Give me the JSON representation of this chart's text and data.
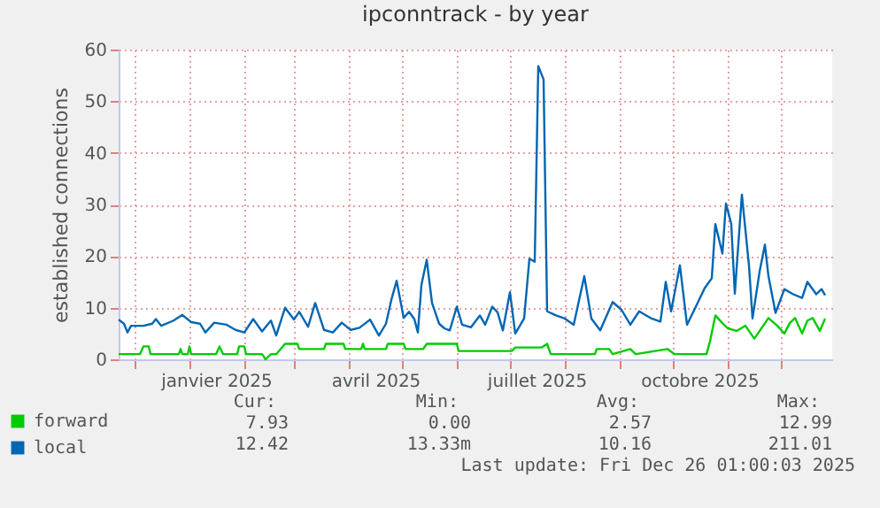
{
  "chart_data": {
    "type": "line",
    "title": "ipconntrack - by year",
    "ylabel": "established connections",
    "xlim": [
      "2024-11-22",
      "2025-12-30"
    ],
    "xticks": [
      {
        "value": "2024-12-01",
        "label": null
      },
      {
        "value": "2025-01-01",
        "label": null
      },
      {
        "value": "2025-01-16",
        "label": "janvier 2025"
      },
      {
        "value": "2025-02-01",
        "label": null
      },
      {
        "value": "2025-03-01",
        "label": null
      },
      {
        "value": "2025-04-01",
        "label": null
      },
      {
        "value": "2025-04-16",
        "label": "avril 2025"
      },
      {
        "value": "2025-05-01",
        "label": null
      },
      {
        "value": "2025-06-01",
        "label": null
      },
      {
        "value": "2025-07-01",
        "label": null
      },
      {
        "value": "2025-07-16",
        "label": "juillet 2025"
      },
      {
        "value": "2025-08-01",
        "label": null
      },
      {
        "value": "2025-09-01",
        "label": null
      },
      {
        "value": "2025-10-01",
        "label": null
      },
      {
        "value": "2025-10-16",
        "label": "octobre 2025"
      },
      {
        "value": "2025-11-01",
        "label": null
      },
      {
        "value": "2025-12-01",
        "label": null
      }
    ],
    "ylim": [
      0,
      60
    ],
    "yticks": [
      0,
      10,
      20,
      30,
      40,
      50,
      60
    ],
    "grid": true,
    "legend": "bottom left",
    "series": [
      {
        "name": "forward",
        "color": "#00cc00",
        "x": [
          "2024-11-22",
          "2024-12-04",
          "2024-12-06",
          "2024-12-09",
          "2024-12-10",
          "2024-12-26",
          "2024-12-27",
          "2024-12-28",
          "2024-12-31",
          "2025-01-01",
          "2025-01-02",
          "2025-01-16",
          "2025-01-18",
          "2025-01-20",
          "2025-01-28",
          "2025-01-29",
          "2025-02-01",
          "2025-02-02",
          "2025-02-11",
          "2025-02-13",
          "2025-02-16",
          "2025-02-19",
          "2025-02-24",
          "2025-03-03",
          "2025-03-04",
          "2025-03-18",
          "2025-03-19",
          "2025-03-29",
          "2025-03-30",
          "2025-04-08",
          "2025-04-09",
          "2025-04-10",
          "2025-04-22",
          "2025-04-23",
          "2025-05-02",
          "2025-05-03",
          "2025-05-13",
          "2025-05-15",
          "2025-06-01",
          "2025-06-02",
          "2025-07-02",
          "2025-07-04",
          "2025-07-19",
          "2025-07-22",
          "2025-07-24",
          "2025-08-18",
          "2025-08-19",
          "2025-08-26",
          "2025-08-28",
          "2025-09-07",
          "2025-09-10",
          "2025-09-28",
          "2025-10-02",
          "2025-10-20",
          "2025-10-22",
          "2025-10-25",
          "2025-10-29",
          "2025-11-01",
          "2025-11-06",
          "2025-11-11",
          "2025-11-16",
          "2025-11-21",
          "2025-11-24",
          "2025-11-29",
          "2025-12-03",
          "2025-12-06",
          "2025-12-09",
          "2025-12-13",
          "2025-12-16",
          "2025-12-19",
          "2025-12-23",
          "2025-12-26"
        ],
        "values": [
          1,
          1,
          2.5,
          2.5,
          1,
          1,
          2,
          1,
          1,
          2.5,
          1,
          1,
          2.5,
          1,
          1,
          2.5,
          2.5,
          1,
          1,
          0,
          1,
          1,
          3,
          3,
          2,
          2,
          3,
          3,
          2,
          2,
          3,
          2,
          2,
          3,
          3,
          2,
          2,
          3,
          3,
          1.6,
          1.6,
          2.3,
          2.3,
          3,
          1,
          1,
          2,
          2,
          1,
          2,
          1,
          2,
          1,
          1,
          3.5,
          8.5,
          7,
          6,
          5.5,
          6.5,
          4,
          6.5,
          8,
          6.5,
          5,
          7,
          8,
          5,
          7.5,
          8,
          5.5,
          7.9
        ]
      },
      {
        "name": "local",
        "color": "#0066b3",
        "x": [
          "2024-11-22",
          "2024-11-25",
          "2024-11-27",
          "2024-11-29",
          "2024-12-06",
          "2024-12-11",
          "2024-12-13",
          "2024-12-16",
          "2024-12-23",
          "2024-12-28",
          "2025-01-02",
          "2025-01-07",
          "2025-01-10",
          "2025-01-15",
          "2025-01-22",
          "2025-01-27",
          "2025-02-01",
          "2025-02-06",
          "2025-02-11",
          "2025-02-16",
          "2025-02-19",
          "2025-02-24",
          "2025-03-01",
          "2025-03-04",
          "2025-03-09",
          "2025-03-13",
          "2025-03-18",
          "2025-03-23",
          "2025-03-28",
          "2025-04-02",
          "2025-04-07",
          "2025-04-13",
          "2025-04-18",
          "2025-04-22",
          "2025-04-25",
          "2025-04-28",
          "2025-05-02",
          "2025-05-05",
          "2025-05-08",
          "2025-05-10",
          "2025-05-12",
          "2025-05-15",
          "2025-05-18",
          "2025-05-22",
          "2025-05-25",
          "2025-05-28",
          "2025-06-01",
          "2025-06-04",
          "2025-06-09",
          "2025-06-14",
          "2025-06-17",
          "2025-06-21",
          "2025-06-24",
          "2025-06-27",
          "2025-07-01",
          "2025-07-04",
          "2025-07-09",
          "2025-07-12",
          "2025-07-15",
          "2025-07-17",
          "2025-07-20",
          "2025-07-22",
          "2025-07-27",
          "2025-08-01",
          "2025-08-06",
          "2025-08-12",
          "2025-08-16",
          "2025-08-21",
          "2025-08-28",
          "2025-09-02",
          "2025-09-07",
          "2025-09-12",
          "2025-09-19",
          "2025-09-24",
          "2025-09-27",
          "2025-09-30",
          "2025-10-05",
          "2025-10-09",
          "2025-10-14",
          "2025-10-19",
          "2025-10-23",
          "2025-10-25",
          "2025-10-29",
          "2025-10-31",
          "2025-11-03",
          "2025-11-05",
          "2025-11-09",
          "2025-11-13",
          "2025-11-15",
          "2025-11-19",
          "2025-11-22",
          "2025-11-24",
          "2025-11-28",
          "2025-12-03",
          "2025-12-08",
          "2025-12-13",
          "2025-12-16",
          "2025-12-21",
          "2025-12-24",
          "2025-12-26"
        ],
        "values": [
          7.7,
          6.9,
          5.2,
          6.5,
          6.5,
          6.9,
          7.8,
          6.5,
          7.5,
          8.6,
          7.2,
          6.9,
          5.2,
          7.1,
          6.7,
          5.7,
          5.2,
          7.8,
          5.4,
          7.5,
          4.6,
          10,
          7.7,
          9.2,
          6.3,
          10.9,
          5.7,
          5.2,
          7.1,
          5.7,
          6.1,
          7.7,
          4.6,
          6.9,
          11.5,
          15.2,
          8,
          9.2,
          7.8,
          5.2,
          14.4,
          19.3,
          10.9,
          6.9,
          6,
          5.6,
          10.2,
          6.7,
          6.2,
          8.5,
          6.7,
          10.2,
          9.1,
          5.6,
          13,
          5,
          7.9,
          19.5,
          18.9,
          56.8,
          54.2,
          9.3,
          8.5,
          7.9,
          6.7,
          16.1,
          7.9,
          5.6,
          11.1,
          9.6,
          6.7,
          9.3,
          7.9,
          7.3,
          15,
          9.3,
          18.2,
          6.7,
          10.2,
          13.8,
          15.7,
          26.2,
          20.5,
          30.2,
          26.2,
          12.7,
          31.9,
          18.2,
          7.9,
          17,
          22.2,
          16.1,
          9,
          13.6,
          12.6,
          11.9,
          15,
          12.6,
          13.6,
          12.4
        ]
      }
    ],
    "annotations": [
      "Cur:",
      "Min:",
      "Avg:",
      "Max:",
      "7.93",
      "0.00",
      "2.57",
      "12.99",
      "12.42",
      "13.33m",
      "10.16",
      "211.01",
      "Last update: Fri Dec 26 01:00:03 2025"
    ]
  }
}
